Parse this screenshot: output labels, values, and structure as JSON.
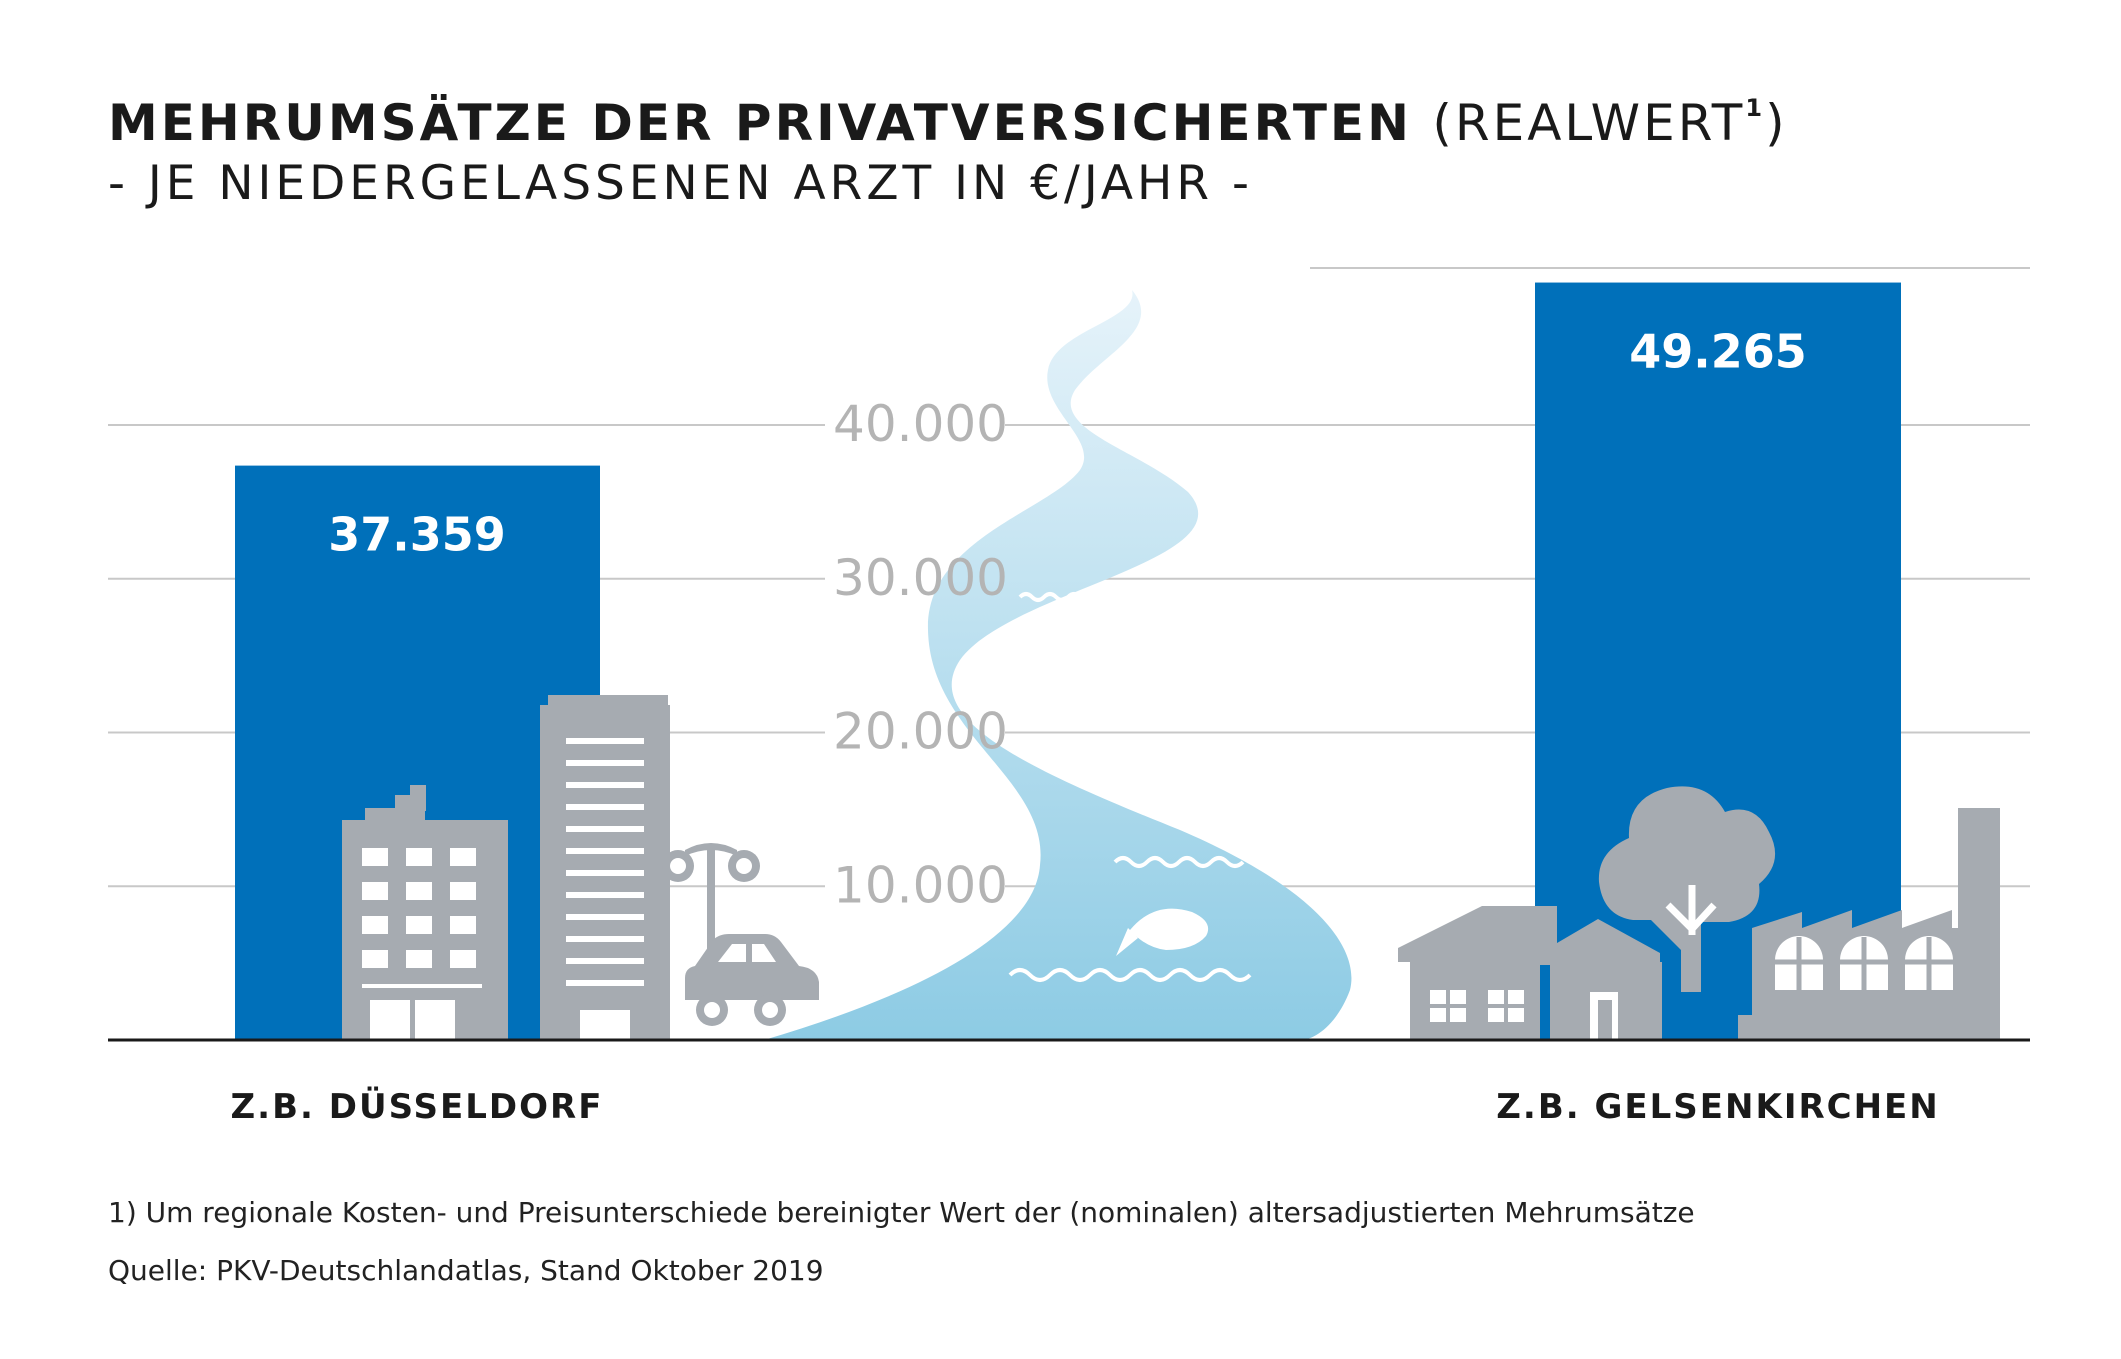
{
  "title": {
    "main": "MEHRUMSÄTZE DER PRIVATVERSICHERTEN",
    "suffix": "(REALWERT",
    "footnote_marker": "1",
    "suffix_close": ")",
    "subtitle": "- JE NIEDERGELASSENEN ARZT IN €/JAHR -"
  },
  "chart_data": {
    "type": "bar",
    "title": "MEHRUMSÄTZE DER PRIVATVERSICHERTEN (REALWERT1) - JE NIEDERGELASSENEN ARZT IN €/JAHR -",
    "categories": [
      "Z.B. DÜSSELDORF",
      "Z.B. GELSENKIRCHEN"
    ],
    "values": [
      37359,
      49265
    ],
    "value_labels": [
      "37.359",
      "49.265"
    ],
    "yticks": [
      10000,
      20000,
      30000,
      40000
    ],
    "ytick_labels": [
      "10.000",
      "20.000",
      "30.000",
      "40.000"
    ],
    "ylim": [
      0,
      50000
    ],
    "grid": true,
    "bar_color": "#0070BA",
    "xlabel": "",
    "ylabel": ""
  },
  "colors": {
    "bar": "#0070BA",
    "grid": "#c8c8c8",
    "tick_label": "#b4b4b4",
    "building": "#a6abb1",
    "river_top": "#d9ecf6",
    "river_bottom": "#8fcde6"
  },
  "illustrations": {
    "left": [
      "apartment-building",
      "office-tower",
      "street-lamp",
      "car"
    ],
    "center": [
      "river",
      "fish",
      "waves"
    ],
    "right": [
      "house",
      "tree",
      "factory"
    ]
  },
  "footnotes": {
    "note1": "1)  Um regionale Kosten- und Preisunterschiede bereinigter Wert der (nominalen) altersadjustierten Mehrumsätze",
    "source": "Quelle: PKV-Deutschlandatlas, Stand Oktober 2019"
  }
}
